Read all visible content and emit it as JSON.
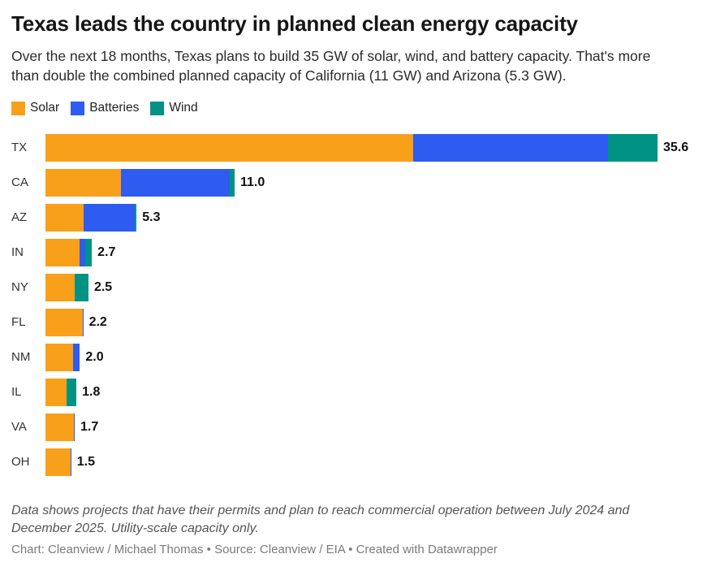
{
  "header": {
    "title": "Texas leads the country in planned clean energy capacity",
    "subtitle": "Over the next 18 months, Texas plans to build 35 GW of solar, wind, and battery capacity. That's more than double the combined planned capacity of California (11 GW) and Arizona (5.3 GW)."
  },
  "legend": {
    "position": "top-left",
    "items": [
      {
        "label": "Solar",
        "color": "#F9A01B"
      },
      {
        "label": "Batteries",
        "color": "#2E5BF0"
      },
      {
        "label": "Wind",
        "color": "#009384"
      }
    ]
  },
  "chart_data": {
    "type": "bar",
    "orientation": "horizontal",
    "stacked": true,
    "unit": "GW",
    "title": "Texas leads the country in planned clean energy capacity",
    "categories": [
      "TX",
      "CA",
      "AZ",
      "IN",
      "NY",
      "FL",
      "NM",
      "IL",
      "VA",
      "OH"
    ],
    "totals": [
      35.6,
      11.0,
      5.3,
      2.7,
      2.5,
      2.2,
      2.0,
      1.8,
      1.7,
      1.5
    ],
    "total_labels": [
      "35.6",
      "11.0",
      "5.3",
      "2.7",
      "2.5",
      "2.2",
      "2.0",
      "1.8",
      "1.7",
      "1.5"
    ],
    "series": [
      {
        "name": "Solar",
        "color": "#F9A01B",
        "values": [
          21.4,
          4.4,
          2.2,
          2.0,
          1.7,
          2.15,
          1.6,
          1.25,
          1.65,
          1.45
        ]
      },
      {
        "name": "Batteries",
        "color": "#2E5BF0",
        "values": [
          11.3,
          6.3,
          3.0,
          0.3,
          0.0,
          0.05,
          0.4,
          0.0,
          0.05,
          0.05
        ]
      },
      {
        "name": "Wind",
        "color": "#009384",
        "values": [
          2.9,
          0.3,
          0.1,
          0.4,
          0.8,
          0.0,
          0.0,
          0.55,
          0.0,
          0.0
        ]
      }
    ],
    "xlim": [
      0,
      35.6
    ],
    "grid": false,
    "value_labels": "total at end of each bar",
    "legend_position": "top-left"
  },
  "footer": {
    "note": "Data shows projects that have their permits and plan to reach commercial operation between July 2024 and December 2025. Utility-scale capacity only.",
    "byline": "Chart: Cleanview / Michael Thomas • Source: Cleanview / EIA • Created with Datawrapper"
  }
}
